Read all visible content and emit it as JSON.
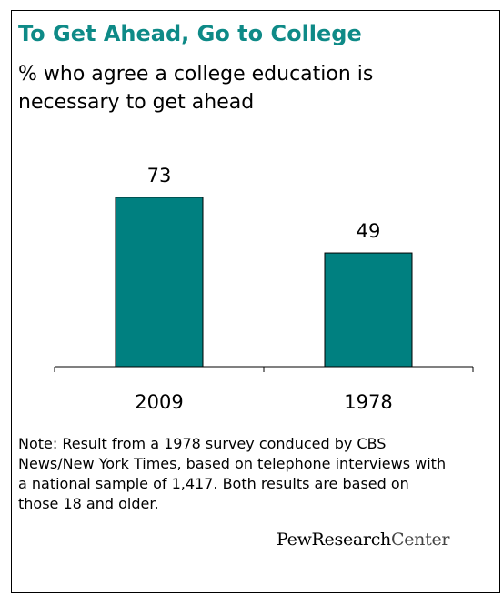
{
  "title": "To Get Ahead, Go to College",
  "subtitle": "% who agree a college education is necessary to get ahead",
  "note": "Note: Result from a 1978 survey conduced by CBS News/New York Times, based on telephone interviews with a national sample of 1,417. Both results are based on those 18 and older.",
  "logo": {
    "part1": "PewResearch",
    "part2": "Center"
  },
  "colors": {
    "bar": "#008080",
    "title": "#0e8a87"
  },
  "chart_data": {
    "type": "bar",
    "title": "To Get Ahead, Go to College",
    "subtitle": "% who agree a college education is necessary to get ahead",
    "categories": [
      "2009",
      "1978"
    ],
    "values": [
      73,
      49
    ],
    "data_labels": [
      "73",
      "49"
    ],
    "ylim": [
      0,
      100
    ],
    "grid": false,
    "legend": "none"
  }
}
